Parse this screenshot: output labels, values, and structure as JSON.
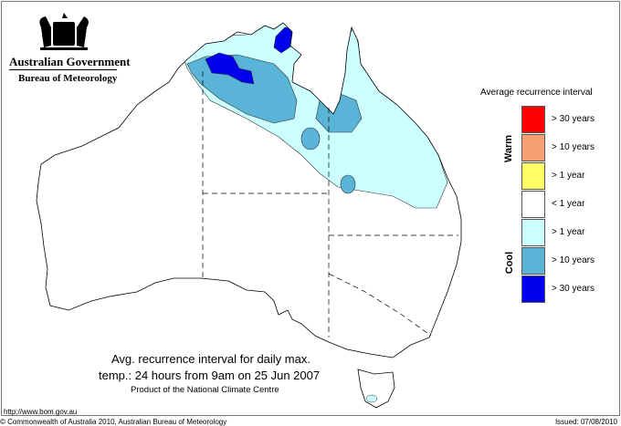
{
  "header": {
    "government": "Australian Government",
    "agency": "Bureau of Meteorology"
  },
  "legend": {
    "title": "Average recurrence interval",
    "groups": {
      "warm": "Warm",
      "cool": "Cool"
    },
    "items": [
      {
        "label": "> 30 years",
        "color": "#ff0000"
      },
      {
        "label": "> 10 years",
        "color": "#f4a070"
      },
      {
        "label": "> 1 year",
        "color": "#ffff66"
      },
      {
        "label": "< 1 year",
        "color": "#ffffff"
      },
      {
        "label": "> 1 year",
        "color": "#ccffff"
      },
      {
        "label": "> 10 years",
        "color": "#5ab4d8"
      },
      {
        "label": "> 30 years",
        "color": "#0000ee"
      }
    ]
  },
  "caption": {
    "line1": "Avg. recurrence interval for daily max.",
    "line2": "temp.: 24 hours from 9am on 25 Jun 2007",
    "line3": "Product of the National Climate Centre"
  },
  "footer": {
    "url": "http://www.bom.gov.au",
    "copyright": "© Commonwealth of Australia 2010, Australian Bureau of Meteorology",
    "issued": "Issued: 07/08/2010"
  }
}
